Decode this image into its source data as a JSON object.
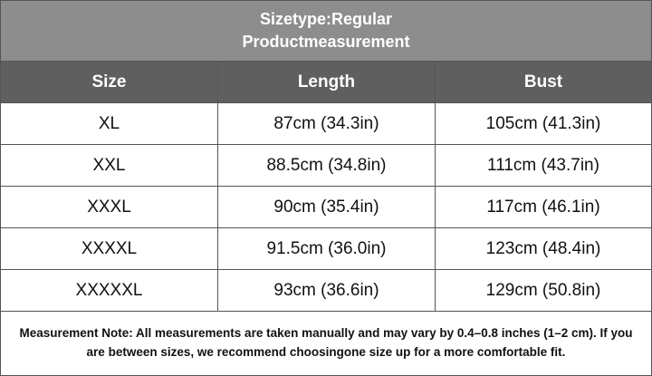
{
  "header": {
    "title": [
      "Sizetype:Regular",
      "Productmeasurement"
    ]
  },
  "table": {
    "columns": [
      "Size",
      "Length",
      "Bust"
    ],
    "rows": [
      [
        "XL",
        "87cm (34.3in)",
        "105cm (41.3in)"
      ],
      [
        "XXL",
        "88.5cm (34.8in)",
        "111cm (43.7in)"
      ],
      [
        "XXXL",
        "90cm (35.4in)",
        "117cm (46.1in)"
      ],
      [
        "XXXXL",
        "91.5cm (36.0in)",
        "123cm (48.4in)"
      ],
      [
        "XXXXXL",
        "93cm (36.6in)",
        "129cm (50.8in)"
      ]
    ]
  },
  "note": "Measurement Note: All measurements are taken manually and may vary by 0.4–0.8 inches (1–2 cm). If you are between sizes, we recommend choosingone size up for a more comfortable fit."
}
